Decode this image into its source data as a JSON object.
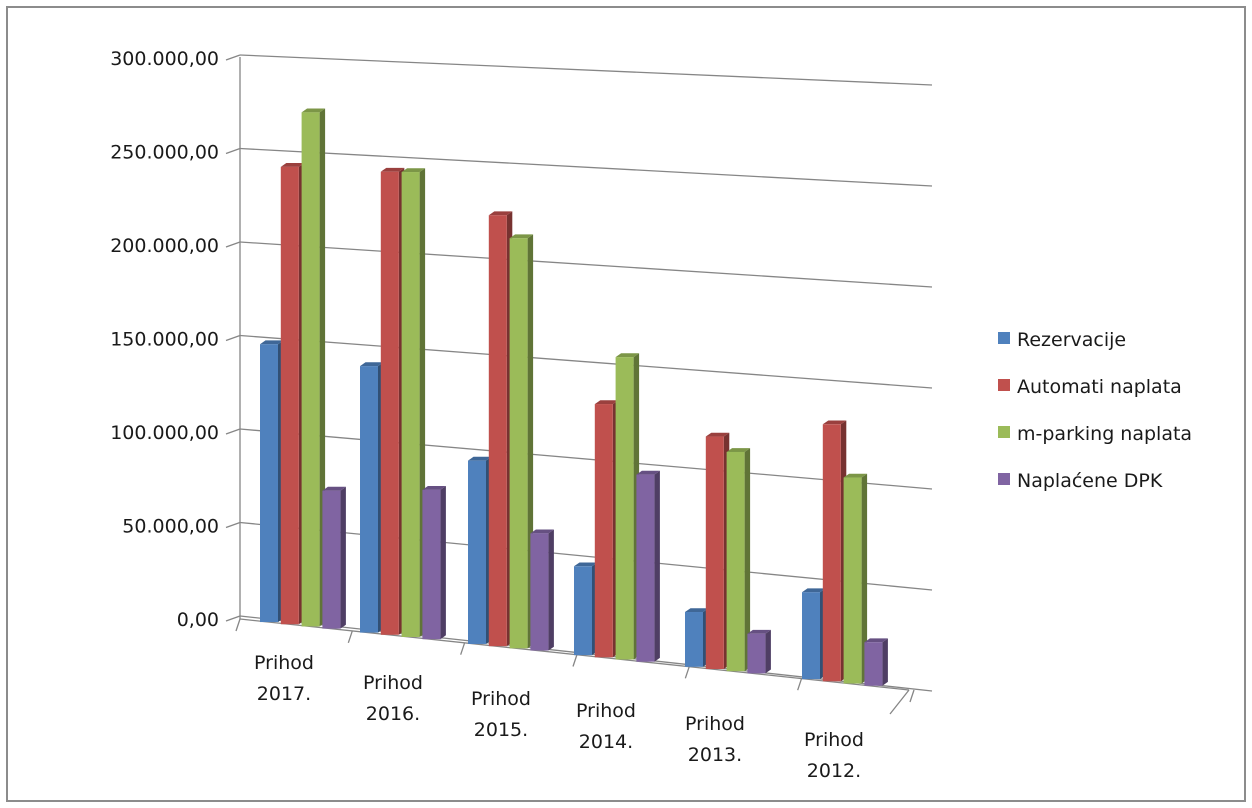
{
  "chart_data": {
    "type": "bar",
    "view": "3d-clustered-column",
    "categories": [
      [
        "Prihod",
        "2017."
      ],
      [
        "Prihod",
        "2016."
      ],
      [
        "Prihod",
        "2015."
      ],
      [
        "Prihod",
        "2014."
      ],
      [
        "Prihod",
        "2013."
      ],
      [
        "Prihod",
        "2012."
      ]
    ],
    "series": [
      {
        "name": "Rezervacije",
        "color": "#4f81bd",
        "values": [
          147000,
          141000,
          97000,
          47000,
          29000,
          46000
        ]
      },
      {
        "name": "Automati naplata",
        "color": "#c0504d",
        "values": [
          242000,
          245000,
          228000,
          134000,
          123000,
          136000
        ]
      },
      {
        "name": "m-parking naplata",
        "color": "#9bbb59",
        "values": [
          272000,
          246000,
          217000,
          160000,
          116000,
          109000
        ]
      },
      {
        "name": "Naplaćene DPK",
        "color": "#8064a2",
        "values": [
          73000,
          79000,
          62000,
          99000,
          21000,
          23000
        ]
      }
    ],
    "ylim": [
      0,
      300000
    ],
    "yticks": [
      {
        "value": 0,
        "label": "0,00"
      },
      {
        "value": 50000,
        "label": "50.000,00"
      },
      {
        "value": 100000,
        "label": "100.000,00"
      },
      {
        "value": 150000,
        "label": "150.000,00"
      },
      {
        "value": 200000,
        "label": "200.000,00"
      },
      {
        "value": 250000,
        "label": "250.000,00"
      },
      {
        "value": 300000,
        "label": "300.000,00"
      }
    ],
    "grid": true,
    "legend": "right",
    "title": "",
    "xlabel": "",
    "ylabel": ""
  }
}
